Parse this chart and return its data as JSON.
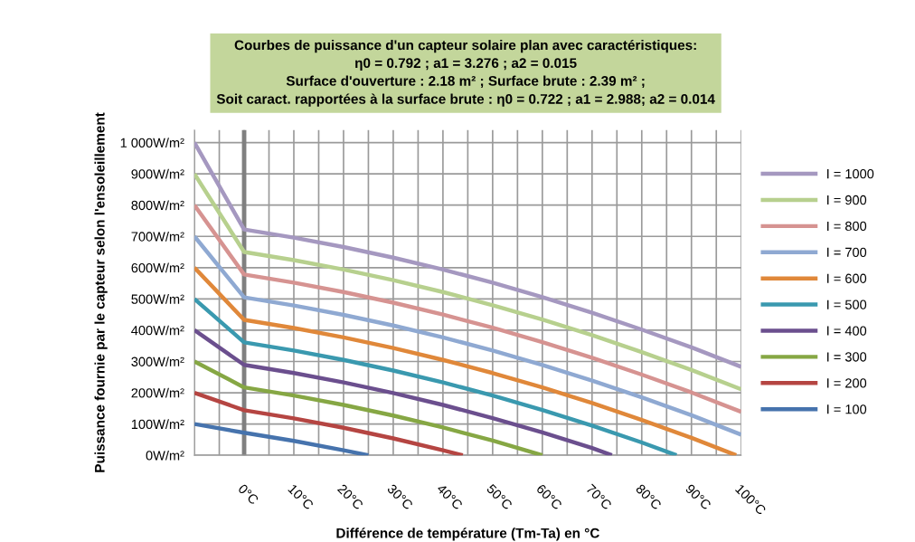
{
  "chart_data": {
    "type": "line",
    "title": "Courbes de puissance d'un capteur solaire plan avec caractéristiques:\nη0 = 0.792 ; a1 = 3.276 ; a2 = 0.015\nSurface d'ouverture : 2.18 m² ; Surface brute : 2.39 m² ;\nSoit caract. rapportées à la surface brute : η0 = 0.722 ; a1 = 2.988; a2 = 0.014",
    "xlabel": "Différence de température (Tm-Ta) en °C",
    "ylabel": "Puissance fournie par le capteur selon l'ensoleillement",
    "xlim": [
      -10,
      100
    ],
    "xticks": [
      {
        "value": -10,
        "label": null
      },
      {
        "value": -5,
        "label": null
      },
      {
        "value": 0,
        "label": "0°C"
      },
      {
        "value": 5,
        "label": null
      },
      {
        "value": 10,
        "label": "10°C"
      },
      {
        "value": 15,
        "label": null
      },
      {
        "value": 20,
        "label": "20°C"
      },
      {
        "value": 25,
        "label": null
      },
      {
        "value": 30,
        "label": "30°C"
      },
      {
        "value": 35,
        "label": null
      },
      {
        "value": 40,
        "label": "40°C"
      },
      {
        "value": 45,
        "label": null
      },
      {
        "value": 50,
        "label": "50°C"
      },
      {
        "value": 55,
        "label": null
      },
      {
        "value": 60,
        "label": "60°C"
      },
      {
        "value": 65,
        "label": null
      },
      {
        "value": 70,
        "label": "70°C"
      },
      {
        "value": 75,
        "label": null
      },
      {
        "value": 80,
        "label": "80°C"
      },
      {
        "value": 85,
        "label": null
      },
      {
        "value": 90,
        "label": "90°C"
      },
      {
        "value": 95,
        "label": null
      },
      {
        "value": 100,
        "label": "100°C"
      }
    ],
    "ylim": [
      0,
      1040
    ],
    "yticks": [
      {
        "value": 0,
        "label": "0W/m²"
      },
      {
        "value": 100,
        "label": "100W/m²"
      },
      {
        "value": 200,
        "label": "200W/m²"
      },
      {
        "value": 300,
        "label": "300W/m²"
      },
      {
        "value": 400,
        "label": "400W/m²"
      },
      {
        "value": 500,
        "label": "500W/m²"
      },
      {
        "value": 600,
        "label": "600W/m²"
      },
      {
        "value": 700,
        "label": "700W/m²"
      },
      {
        "value": 800,
        "label": "800W/m²"
      },
      {
        "value": 900,
        "label": "900W/m²"
      },
      {
        "value": 1000,
        "label": "1 000W/m²"
      }
    ],
    "grid": true,
    "legend": "right",
    "marker": "none",
    "line_style": "solid",
    "ref_lines": [
      {
        "axis": "x",
        "value": 0,
        "label": null,
        "color": "#808080"
      }
    ],
    "series": [
      {
        "name": "I = 1000",
        "color": "#a598c0",
        "x": [
          -10,
          0,
          10,
          20,
          30,
          40,
          50,
          60,
          70,
          80,
          90,
          100
        ],
        "values": [
          1000,
          722,
          696,
          666,
          632,
          594,
          552,
          506,
          456,
          402,
          345,
          283
        ]
      },
      {
        "name": "I = 900",
        "color": "#b7d08e",
        "x": [
          -10,
          0,
          10,
          20,
          30,
          40,
          50,
          60,
          70,
          80,
          90,
          100
        ],
        "values": [
          900,
          650,
          624,
          594,
          560,
          522,
          480,
          434,
          384,
          330,
          273,
          211
        ]
      },
      {
        "name": "I = 800",
        "color": "#d69391",
        "x": [
          -10,
          0,
          10,
          20,
          30,
          40,
          50,
          60,
          70,
          80,
          90,
          100
        ],
        "values": [
          800,
          578,
          552,
          522,
          488,
          450,
          408,
          362,
          312,
          258,
          201,
          139
        ]
      },
      {
        "name": "I = 700",
        "color": "#8fa9d2",
        "x": [
          -10,
          0,
          10,
          20,
          30,
          40,
          50,
          60,
          70,
          80,
          90,
          100
        ],
        "values": [
          700,
          505,
          479,
          449,
          415,
          377,
          335,
          289,
          239,
          185,
          128,
          66
        ]
      },
      {
        "name": "I = 600",
        "color": "#e0883a",
        "x": [
          -10,
          0,
          10,
          20,
          30,
          40,
          50,
          60,
          70,
          80,
          90,
          99
        ],
        "values": [
          600,
          433,
          407,
          377,
          343,
          305,
          263,
          217,
          167,
          113,
          56,
          0
        ]
      },
      {
        "name": "I = 500",
        "color": "#3a99af",
        "x": [
          -10,
          0,
          10,
          20,
          30,
          40,
          50,
          60,
          70,
          80,
          87
        ],
        "values": [
          500,
          361,
          335,
          305,
          271,
          233,
          191,
          145,
          95,
          41,
          0
        ]
      },
      {
        "name": "I = 400",
        "color": "#6b4f8e",
        "x": [
          -10,
          0,
          10,
          20,
          30,
          40,
          50,
          60,
          70,
          74
        ],
        "values": [
          400,
          289,
          263,
          233,
          199,
          161,
          119,
          73,
          23,
          0
        ]
      },
      {
        "name": "I = 300",
        "color": "#86a744",
        "x": [
          -10,
          0,
          10,
          20,
          30,
          40,
          50,
          60
        ],
        "values": [
          300,
          217,
          191,
          161,
          127,
          89,
          47,
          0
        ]
      },
      {
        "name": "I = 200",
        "color": "#b54542",
        "x": [
          -10,
          0,
          10,
          20,
          30,
          40,
          44
        ],
        "values": [
          200,
          144,
          118,
          88,
          54,
          16,
          0
        ]
      },
      {
        "name": "I = 100",
        "color": "#4673ad",
        "x": [
          -10,
          0,
          10,
          20,
          25
        ],
        "values": [
          100,
          72,
          46,
          16,
          0
        ]
      }
    ]
  }
}
